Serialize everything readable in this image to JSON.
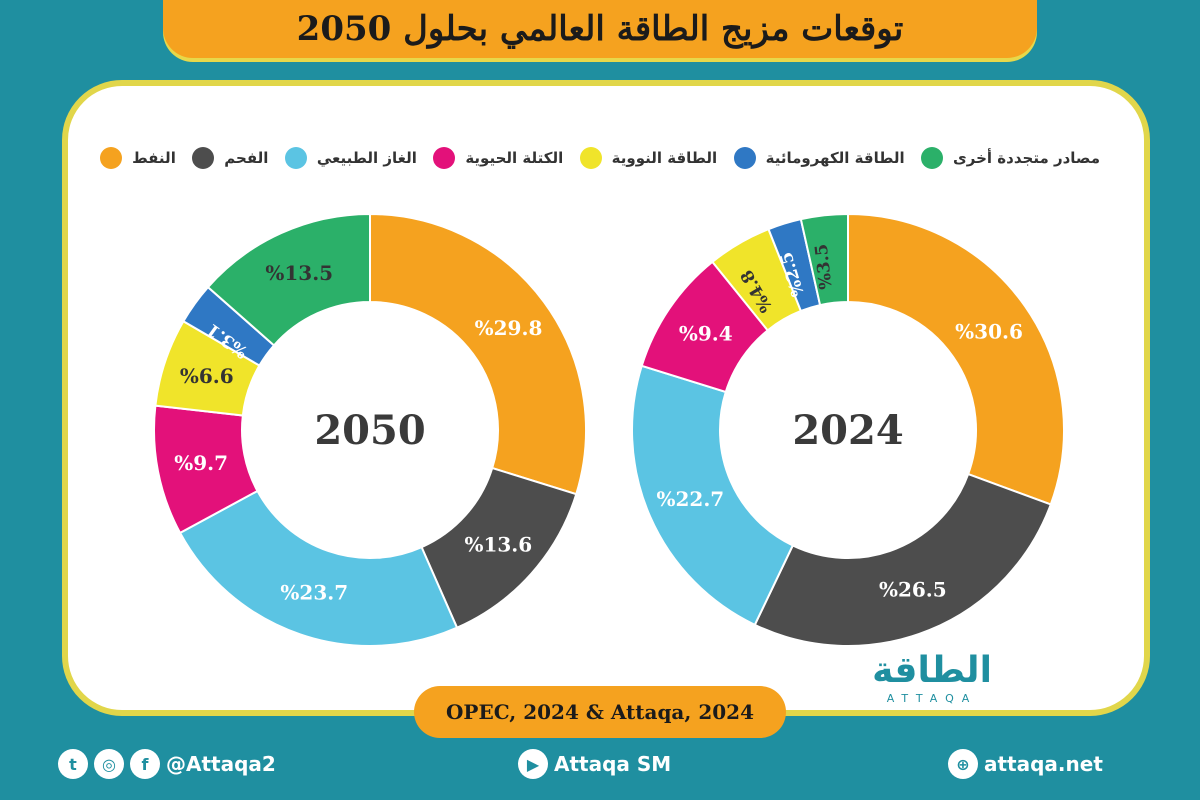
{
  "header": {
    "title": "توقعات مزيج الطاقة العالمي بحلول 2050"
  },
  "legend": [
    {
      "label": "النفط",
      "color": "#f5a21f"
    },
    {
      "label": "الفحم",
      "color": "#4d4d4d"
    },
    {
      "label": "الغاز الطبيعي",
      "color": "#5bc4e3"
    },
    {
      "label": "الكتلة الحيوية",
      "color": "#e3117a"
    },
    {
      "label": "الطاقة النووية",
      "color": "#f0e42a"
    },
    {
      "label": "الطاقة الكهرومائية",
      "color": "#2f78c4"
    },
    {
      "label": "مصادر متجددة أخرى",
      "color": "#2bb069"
    }
  ],
  "chart_data": [
    {
      "type": "pie",
      "title": "2024",
      "categories": [
        "النفط",
        "الفحم",
        "الغاز الطبيعي",
        "الكتلة الحيوية",
        "الطاقة النووية",
        "الطاقة الكهرومائية",
        "مصادر متجددة أخرى"
      ],
      "values": [
        30.6,
        26.5,
        22.7,
        9.4,
        4.8,
        2.5,
        3.5
      ],
      "labels": [
        "%30.6",
        "%26.5",
        "%22.7",
        "%9.4",
        "%4.8",
        "%2.5",
        "%3.5"
      ]
    },
    {
      "type": "pie",
      "title": "2050",
      "categories": [
        "النفط",
        "الفحم",
        "الغاز الطبيعي",
        "الكتلة الحيوية",
        "الطاقة النووية",
        "الطاقة الكهرومائية",
        "مصادر متجددة أخرى"
      ],
      "values": [
        29.8,
        13.6,
        23.7,
        9.7,
        6.6,
        3.1,
        13.5
      ],
      "labels": [
        "%29.8",
        "%13.6",
        "%23.7",
        "%9.7",
        "%6.6",
        "%3.1",
        "%13.5"
      ]
    }
  ],
  "source": "OPEC, 2024 & Attaqa, 2024",
  "brand": {
    "arabic": "الطاقة",
    "latin": "ATTAQA"
  },
  "footer": {
    "social_handle": "@Attaqa2",
    "youtube": "Attaqa SM",
    "website": "attaqa.net"
  }
}
